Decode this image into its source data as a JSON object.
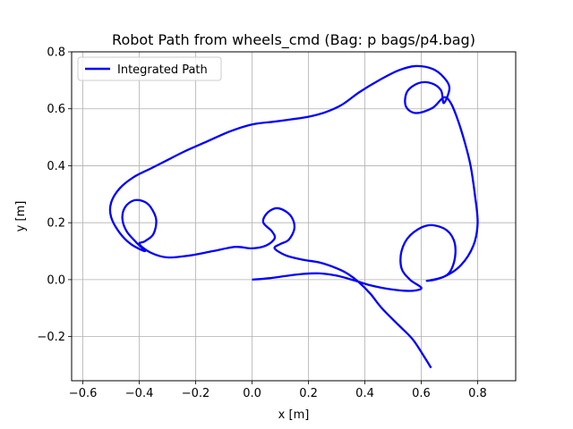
{
  "chart_data": {
    "type": "line",
    "title": "Robot Path from wheels_cmd (Bag: p bags/p4.bag)",
    "xlabel": "x [m]",
    "ylabel": "y [m]",
    "xlim": [
      -0.64,
      0.935
    ],
    "ylim": [
      -0.355,
      0.8
    ],
    "xticks": [
      -0.6,
      -0.4,
      -0.2,
      0.0,
      0.2,
      0.4,
      0.6,
      0.8
    ],
    "yticks": [
      -0.2,
      0.0,
      0.2,
      0.4,
      0.6,
      0.8
    ],
    "xtick_labels": [
      "−0.6",
      "−0.4",
      "−0.2",
      "0.0",
      "0.2",
      "0.4",
      "0.6",
      "0.8"
    ],
    "ytick_labels": [
      "−0.2",
      "0.0",
      "0.2",
      "0.4",
      "0.6",
      "0.8"
    ],
    "grid": true,
    "legend": {
      "position": "top-left",
      "entries": [
        "Integrated Path"
      ]
    },
    "series": [
      {
        "name": "Integrated Path",
        "color": "#0000ff",
        "points": [
          [
            0.0,
            0.0
          ],
          [
            0.06,
            0.005
          ],
          [
            0.12,
            0.013
          ],
          [
            0.18,
            0.02
          ],
          [
            0.24,
            0.022
          ],
          [
            0.3,
            0.014
          ],
          [
            0.36,
            -0.002
          ],
          [
            0.42,
            -0.02
          ],
          [
            0.48,
            -0.032
          ],
          [
            0.54,
            -0.039
          ],
          [
            0.58,
            -0.038
          ],
          [
            0.6,
            -0.028
          ],
          [
            0.56,
            0.0
          ],
          [
            0.53,
            0.04
          ],
          [
            0.53,
            0.1
          ],
          [
            0.56,
            0.155
          ],
          [
            0.62,
            0.19
          ],
          [
            0.68,
            0.18
          ],
          [
            0.715,
            0.14
          ],
          [
            0.72,
            0.08
          ],
          [
            0.7,
            0.025
          ],
          [
            0.66,
            0.003
          ],
          [
            0.62,
            -0.004
          ],
          [
            0.68,
            0.01
          ],
          [
            0.74,
            0.05
          ],
          [
            0.785,
            0.12
          ],
          [
            0.8,
            0.2
          ],
          [
            0.79,
            0.3
          ],
          [
            0.775,
            0.4
          ],
          [
            0.755,
            0.48
          ],
          [
            0.73,
            0.56
          ],
          [
            0.705,
            0.62
          ],
          [
            0.68,
            0.64
          ],
          [
            0.64,
            0.603
          ],
          [
            0.58,
            0.585
          ],
          [
            0.545,
            0.61
          ],
          [
            0.55,
            0.66
          ],
          [
            0.59,
            0.69
          ],
          [
            0.635,
            0.69
          ],
          [
            0.67,
            0.665
          ],
          [
            0.68,
            0.62
          ],
          [
            0.7,
            0.672
          ],
          [
            0.68,
            0.71
          ],
          [
            0.64,
            0.74
          ],
          [
            0.58,
            0.75
          ],
          [
            0.52,
            0.735
          ],
          [
            0.45,
            0.7
          ],
          [
            0.38,
            0.658
          ],
          [
            0.32,
            0.615
          ],
          [
            0.26,
            0.588
          ],
          [
            0.2,
            0.572
          ],
          [
            0.14,
            0.563
          ],
          [
            0.08,
            0.555
          ],
          [
            0.0,
            0.545
          ],
          [
            -0.08,
            0.52
          ],
          [
            -0.16,
            0.485
          ],
          [
            -0.24,
            0.45
          ],
          [
            -0.3,
            0.42
          ],
          [
            -0.36,
            0.39
          ],
          [
            -0.42,
            0.36
          ],
          [
            -0.47,
            0.32
          ],
          [
            -0.5,
            0.27
          ],
          [
            -0.5,
            0.22
          ],
          [
            -0.47,
            0.165
          ],
          [
            -0.43,
            0.125
          ],
          [
            -0.38,
            0.1
          ],
          [
            -0.41,
            0.13
          ],
          [
            -0.445,
            0.17
          ],
          [
            -0.46,
            0.215
          ],
          [
            -0.45,
            0.255
          ],
          [
            -0.42,
            0.278
          ],
          [
            -0.385,
            0.275
          ],
          [
            -0.36,
            0.255
          ],
          [
            -0.34,
            0.21
          ],
          [
            -0.35,
            0.16
          ],
          [
            -0.38,
            0.135
          ],
          [
            -0.4,
            0.125
          ],
          [
            -0.36,
            0.095
          ],
          [
            -0.3,
            0.078
          ],
          [
            -0.22,
            0.085
          ],
          [
            -0.14,
            0.1
          ],
          [
            -0.06,
            0.115
          ],
          [
            0.0,
            0.11
          ],
          [
            0.05,
            0.12
          ],
          [
            0.08,
            0.145
          ],
          [
            0.07,
            0.17
          ],
          [
            0.04,
            0.2
          ],
          [
            0.05,
            0.23
          ],
          [
            0.08,
            0.25
          ],
          [
            0.11,
            0.245
          ],
          [
            0.14,
            0.22
          ],
          [
            0.15,
            0.18
          ],
          [
            0.13,
            0.14
          ],
          [
            0.1,
            0.125
          ],
          [
            0.08,
            0.11
          ],
          [
            0.12,
            0.085
          ],
          [
            0.18,
            0.07
          ],
          [
            0.24,
            0.06
          ],
          [
            0.3,
            0.04
          ],
          [
            0.34,
            0.02
          ],
          [
            0.38,
            -0.01
          ],
          [
            0.42,
            -0.05
          ],
          [
            0.46,
            -0.1
          ],
          [
            0.52,
            -0.16
          ],
          [
            0.57,
            -0.21
          ],
          [
            0.61,
            -0.27
          ],
          [
            0.635,
            -0.31
          ]
        ]
      }
    ]
  }
}
